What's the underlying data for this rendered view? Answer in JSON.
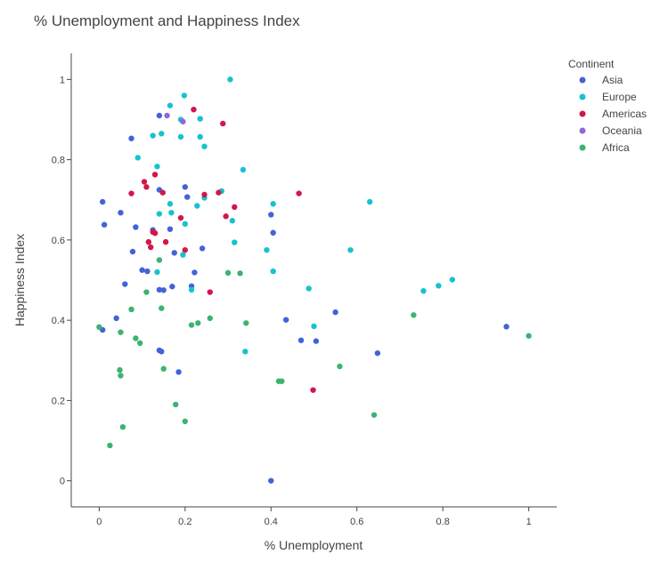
{
  "chart_data": {
    "type": "scatter",
    "title": "% Unemployment and Happiness Index",
    "xlabel": "% Unemployment",
    "ylabel": "Happiness Index",
    "xlim": [
      -0.065,
      1.065
    ],
    "ylim": [
      -0.065,
      1.065
    ],
    "x_ticks": [
      0,
      0.2,
      0.4,
      0.6,
      0.8,
      1
    ],
    "y_ticks": [
      0,
      0.2,
      0.4,
      0.6,
      0.8,
      1
    ],
    "x_tick_labels": [
      "0",
      "0.2",
      "0.4",
      "0.6",
      "0.8",
      "1"
    ],
    "y_tick_labels": [
      "0",
      "0.2",
      "0.4",
      "0.6",
      "0.8",
      "1"
    ],
    "grid": false,
    "legend": {
      "title": "Continent",
      "placement": "top-right"
    },
    "series": [
      {
        "name": "Asia",
        "color": "#4263d8",
        "points": [
          [
            0.14,
            0.91
          ],
          [
            0.075,
            0.853
          ],
          [
            0.008,
            0.695
          ],
          [
            0.012,
            0.638
          ],
          [
            0.05,
            0.668
          ],
          [
            0.085,
            0.632
          ],
          [
            0.078,
            0.571
          ],
          [
            0.04,
            0.405
          ],
          [
            0.008,
            0.376
          ],
          [
            0.06,
            0.49
          ],
          [
            0.1,
            0.525
          ],
          [
            0.112,
            0.522
          ],
          [
            0.125,
            0.625
          ],
          [
            0.14,
            0.725
          ],
          [
            0.165,
            0.627
          ],
          [
            0.175,
            0.568
          ],
          [
            0.2,
            0.732
          ],
          [
            0.205,
            0.707
          ],
          [
            0.215,
            0.485
          ],
          [
            0.222,
            0.519
          ],
          [
            0.24,
            0.579
          ],
          [
            0.14,
            0.476
          ],
          [
            0.15,
            0.475
          ],
          [
            0.17,
            0.484
          ],
          [
            0.14,
            0.325
          ],
          [
            0.145,
            0.322
          ],
          [
            0.185,
            0.271
          ],
          [
            0.4,
            0.663
          ],
          [
            0.405,
            0.618
          ],
          [
            0.435,
            0.401
          ],
          [
            0.47,
            0.35
          ],
          [
            0.505,
            0.348
          ],
          [
            0.55,
            0.42
          ],
          [
            0.648,
            0.318
          ],
          [
            0.948,
            0.384
          ],
          [
            0.4,
            0.0
          ]
        ]
      },
      {
        "name": "Europe",
        "color": "#17c2cf",
        "points": [
          [
            0.305,
            1.0
          ],
          [
            0.198,
            0.96
          ],
          [
            0.165,
            0.935
          ],
          [
            0.19,
            0.9
          ],
          [
            0.235,
            0.902
          ],
          [
            0.145,
            0.865
          ],
          [
            0.125,
            0.86
          ],
          [
            0.19,
            0.857
          ],
          [
            0.235,
            0.857
          ],
          [
            0.245,
            0.833
          ],
          [
            0.09,
            0.805
          ],
          [
            0.135,
            0.783
          ],
          [
            0.335,
            0.775
          ],
          [
            0.285,
            0.722
          ],
          [
            0.245,
            0.705
          ],
          [
            0.228,
            0.685
          ],
          [
            0.165,
            0.69
          ],
          [
            0.14,
            0.665
          ],
          [
            0.168,
            0.668
          ],
          [
            0.2,
            0.64
          ],
          [
            0.31,
            0.648
          ],
          [
            0.405,
            0.69
          ],
          [
            0.315,
            0.594
          ],
          [
            0.63,
            0.695
          ],
          [
            0.39,
            0.575
          ],
          [
            0.585,
            0.575
          ],
          [
            0.135,
            0.52
          ],
          [
            0.195,
            0.563
          ],
          [
            0.215,
            0.476
          ],
          [
            0.405,
            0.522
          ],
          [
            0.488,
            0.479
          ],
          [
            0.5,
            0.385
          ],
          [
            0.755,
            0.473
          ],
          [
            0.79,
            0.486
          ],
          [
            0.822,
            0.501
          ],
          [
            0.34,
            0.322
          ]
        ]
      },
      {
        "name": "Americas",
        "color": "#d2174a",
        "points": [
          [
            0.22,
            0.925
          ],
          [
            0.288,
            0.89
          ],
          [
            0.13,
            0.763
          ],
          [
            0.105,
            0.745
          ],
          [
            0.11,
            0.732
          ],
          [
            0.075,
            0.716
          ],
          [
            0.148,
            0.718
          ],
          [
            0.245,
            0.713
          ],
          [
            0.278,
            0.718
          ],
          [
            0.465,
            0.716
          ],
          [
            0.315,
            0.682
          ],
          [
            0.19,
            0.655
          ],
          [
            0.295,
            0.659
          ],
          [
            0.125,
            0.62
          ],
          [
            0.13,
            0.617
          ],
          [
            0.155,
            0.595
          ],
          [
            0.115,
            0.595
          ],
          [
            0.12,
            0.582
          ],
          [
            0.2,
            0.575
          ],
          [
            0.258,
            0.47
          ],
          [
            0.498,
            0.226
          ]
        ]
      },
      {
        "name": "Oceania",
        "color": "#9465d6",
        "points": [
          [
            0.158,
            0.91
          ],
          [
            0.195,
            0.895
          ]
        ]
      },
      {
        "name": "Africa",
        "color": "#3cb371",
        "points": [
          [
            0.14,
            0.55
          ],
          [
            0.11,
            0.47
          ],
          [
            0.075,
            0.427
          ],
          [
            0.145,
            0.43
          ],
          [
            0.095,
            0.343
          ],
          [
            0.085,
            0.355
          ],
          [
            0.0,
            0.383
          ],
          [
            0.05,
            0.37
          ],
          [
            0.048,
            0.276
          ],
          [
            0.05,
            0.262
          ],
          [
            0.055,
            0.134
          ],
          [
            0.025,
            0.088
          ],
          [
            0.15,
            0.279
          ],
          [
            0.178,
            0.19
          ],
          [
            0.2,
            0.148
          ],
          [
            0.215,
            0.388
          ],
          [
            0.23,
            0.393
          ],
          [
            0.258,
            0.405
          ],
          [
            0.3,
            0.518
          ],
          [
            0.328,
            0.517
          ],
          [
            0.342,
            0.393
          ],
          [
            0.418,
            0.248
          ],
          [
            0.425,
            0.248
          ],
          [
            0.56,
            0.285
          ],
          [
            0.64,
            0.164
          ],
          [
            0.732,
            0.413
          ],
          [
            1.0,
            0.361
          ]
        ]
      }
    ]
  }
}
